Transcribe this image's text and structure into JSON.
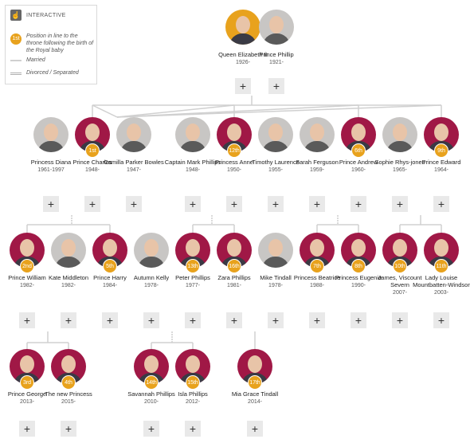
{
  "legend": {
    "interactive_label": "INTERACTIVE",
    "position_label": "Position in line to the throne following the birth of the Royal baby",
    "married_label": "Married",
    "divorced_label": "Divorced / Separated",
    "badge_example": "1st"
  },
  "expand_label": "+",
  "colors": {
    "crimson": "#a01846",
    "gold": "#e8a21d",
    "line": "#d0d0d0"
  },
  "people": [
    {
      "id": "elizabeth",
      "name": "Queen Elizabeth II",
      "years": "1926-",
      "frame": "gold",
      "rank": ""
    },
    {
      "id": "phillip",
      "name": "Prince Phillip",
      "years": "1921-",
      "frame": "grey",
      "rank": ""
    },
    {
      "id": "diana",
      "name": "Princess Diana",
      "years": "1961-1997",
      "frame": "grey",
      "rank": ""
    },
    {
      "id": "charles",
      "name": "Prince Charles",
      "years": "1948-",
      "frame": "crimson",
      "rank": "1st"
    },
    {
      "id": "camilla",
      "name": "Camilla Parker Bowles",
      "years": "1947-",
      "frame": "grey",
      "rank": ""
    },
    {
      "id": "markphillips",
      "name": "Captain Mark Phillips",
      "years": "1948-",
      "frame": "grey",
      "rank": ""
    },
    {
      "id": "anne",
      "name": "Princess Anne",
      "years": "1950-",
      "frame": "crimson",
      "rank": "12th"
    },
    {
      "id": "timothy",
      "name": "Timothy Laurence",
      "years": "1955-",
      "frame": "grey",
      "rank": ""
    },
    {
      "id": "sarah",
      "name": "Sarah Ferguson",
      "years": "1959-",
      "frame": "grey",
      "rank": ""
    },
    {
      "id": "andrew",
      "name": "Prince Andrew",
      "years": "1960-",
      "frame": "crimson",
      "rank": "6th"
    },
    {
      "id": "sophie",
      "name": "Sophie Rhys-jones",
      "years": "1965-",
      "frame": "grey",
      "rank": ""
    },
    {
      "id": "edward",
      "name": "Prince Edward",
      "years": "1964-",
      "frame": "crimson",
      "rank": "9th"
    },
    {
      "id": "william",
      "name": "Prince William",
      "years": "1982-",
      "frame": "crimson",
      "rank": "2nd"
    },
    {
      "id": "kate",
      "name": "Kate Middleton",
      "years": "1982-",
      "frame": "grey",
      "rank": ""
    },
    {
      "id": "harry",
      "name": "Prince Harry",
      "years": "1984-",
      "frame": "crimson",
      "rank": "5th"
    },
    {
      "id": "autumn",
      "name": "Autumn Kelly",
      "years": "1978-",
      "frame": "grey",
      "rank": ""
    },
    {
      "id": "peter",
      "name": "Peter Phillips",
      "years": "1977-",
      "frame": "crimson",
      "rank": "13th"
    },
    {
      "id": "zara",
      "name": "Zara Phillips",
      "years": "1981-",
      "frame": "crimson",
      "rank": "16th"
    },
    {
      "id": "mike",
      "name": "Mike Tindall",
      "years": "1978-",
      "frame": "grey",
      "rank": ""
    },
    {
      "id": "beatrice",
      "name": "Princess Beatrice",
      "years": "1988-",
      "frame": "crimson",
      "rank": "7th"
    },
    {
      "id": "eugenie",
      "name": "Princess Eugenie",
      "years": "1990-",
      "frame": "crimson",
      "rank": "8th"
    },
    {
      "id": "james",
      "name": "James, Viscount Severn",
      "years": "2007-",
      "frame": "crimson",
      "rank": "10th"
    },
    {
      "id": "louise",
      "name": "Lady Louise Mountbatten-Windsor",
      "years": "2003-",
      "frame": "crimson",
      "rank": "11th"
    },
    {
      "id": "george",
      "name": "Prince George",
      "years": "2013-",
      "frame": "crimson",
      "rank": "3rd"
    },
    {
      "id": "newprincess",
      "name": "The new Princess",
      "years": "2015-",
      "frame": "crimson",
      "rank": "4th"
    },
    {
      "id": "savannah",
      "name": "Savannah Phillips",
      "years": "2010-",
      "frame": "crimson",
      "rank": "14th"
    },
    {
      "id": "isla",
      "name": "Isla Phillips",
      "years": "2012-",
      "frame": "crimson",
      "rank": "15th"
    },
    {
      "id": "mia",
      "name": "Mia Grace Tindall",
      "years": "2014-",
      "frame": "crimson",
      "rank": "17th"
    }
  ]
}
